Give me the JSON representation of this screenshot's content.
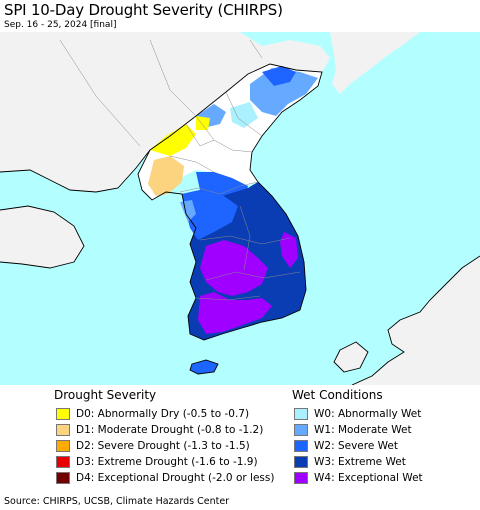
{
  "header": {
    "title": "SPI 10-Day Drought Severity (CHIRPS)",
    "subtitle": "Sep. 16 - 25, 2024 [final]"
  },
  "map": {
    "region": "Korean Peninsula",
    "colors": {
      "sea": "#b3ffff",
      "land": "#ffffff",
      "neighbor_land": "#f2f2f2",
      "coast": "#000000",
      "admin_border": "#8a8a8a"
    }
  },
  "legend": {
    "drought_heading": "Drought Severity",
    "wet_heading": "Wet Conditions",
    "drought": [
      {
        "label": "D0: Abnormally Dry (-0.5 to -0.7)",
        "color": "#ffff00"
      },
      {
        "label": "D1: Moderate Drought (-0.8 to -1.2)",
        "color": "#fcd37f"
      },
      {
        "label": "D2: Severe Drought (-1.3 to -1.5)",
        "color": "#ffaa00"
      },
      {
        "label": "D3: Extreme Drought (-1.6 to -1.9)",
        "color": "#e60000"
      },
      {
        "label": "D4: Exceptional Drought (-2.0 or less)",
        "color": "#730000"
      }
    ],
    "wet": [
      {
        "label": "W0: Abnormally Wet",
        "color": "#aaf0ff"
      },
      {
        "label": "W1: Moderate Wet",
        "color": "#66aaff"
      },
      {
        "label": "W2: Severe Wet",
        "color": "#1e64ff"
      },
      {
        "label": "W3: Extreme Wet",
        "color": "#0a3cb4"
      },
      {
        "label": "W4: Exceptional Wet",
        "color": "#a000ff"
      }
    ]
  },
  "footer": {
    "source": "Source: CHIRPS, UCSB, Climate Hazards Center"
  }
}
